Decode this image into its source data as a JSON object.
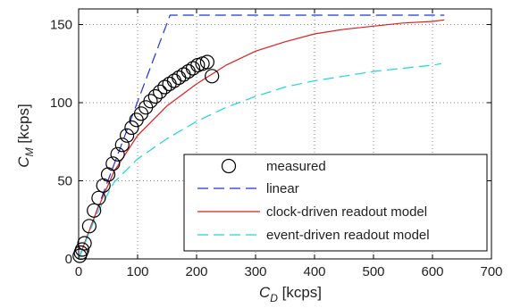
{
  "chart_data": {
    "type": "line",
    "xlabel": {
      "main": "C",
      "sub": "D",
      "unit": " [kcps]"
    },
    "ylabel": {
      "main": "C",
      "sub": "M",
      "unit": " [kcps]"
    },
    "xlim": [
      0,
      700
    ],
    "ylim": [
      0,
      160
    ],
    "xticks": [
      "0",
      "100",
      "200",
      "300",
      "400",
      "500",
      "600",
      "700"
    ],
    "yticks": [
      "0",
      "50",
      "100",
      "150"
    ],
    "grid": true,
    "legend_position": "bottom-right",
    "series": [
      {
        "name": "measured",
        "style": "markers",
        "color": "#000000",
        "x": [
          2,
          4,
          6,
          10,
          18,
          26,
          34,
          42,
          50,
          58,
          66,
          74,
          82,
          90,
          98,
          106,
          114,
          122,
          130,
          138,
          146,
          154,
          162,
          170,
          178,
          186,
          194,
          202,
          210,
          218,
          226
        ],
        "y": [
          2,
          4,
          6,
          10,
          21,
          31,
          39,
          47,
          54,
          61,
          67,
          73,
          79,
          84,
          89,
          93,
          97,
          101,
          104,
          107,
          110,
          112,
          114,
          116,
          118,
          120,
          122,
          124,
          125,
          126,
          117
        ]
      },
      {
        "name": "linear",
        "style": "dashed",
        "color": "#1f33d6",
        "x": [
          0,
          155,
          165,
          620
        ],
        "y": [
          0,
          156,
          156,
          156
        ]
      },
      {
        "name": "clock-driven readout model",
        "style": "solid",
        "color": "#e01e1e",
        "x": [
          0,
          30,
          60,
          100,
          150,
          200,
          250,
          300,
          350,
          400,
          450,
          500,
          550,
          600,
          620
        ],
        "y": [
          0,
          30,
          56,
          79,
          98,
          112,
          124,
          133,
          139,
          144,
          147,
          149,
          151,
          152,
          153
        ]
      },
      {
        "name": "event-driven readout model",
        "style": "dashed",
        "color": "#19d8d8",
        "x": [
          0,
          30,
          60,
          100,
          150,
          200,
          250,
          300,
          350,
          400,
          450,
          500,
          550,
          600,
          615
        ],
        "y": [
          0,
          28,
          49,
          64,
          77,
          88,
          97,
          104,
          110,
          114,
          117,
          120,
          122,
          124,
          125
        ]
      }
    ]
  }
}
